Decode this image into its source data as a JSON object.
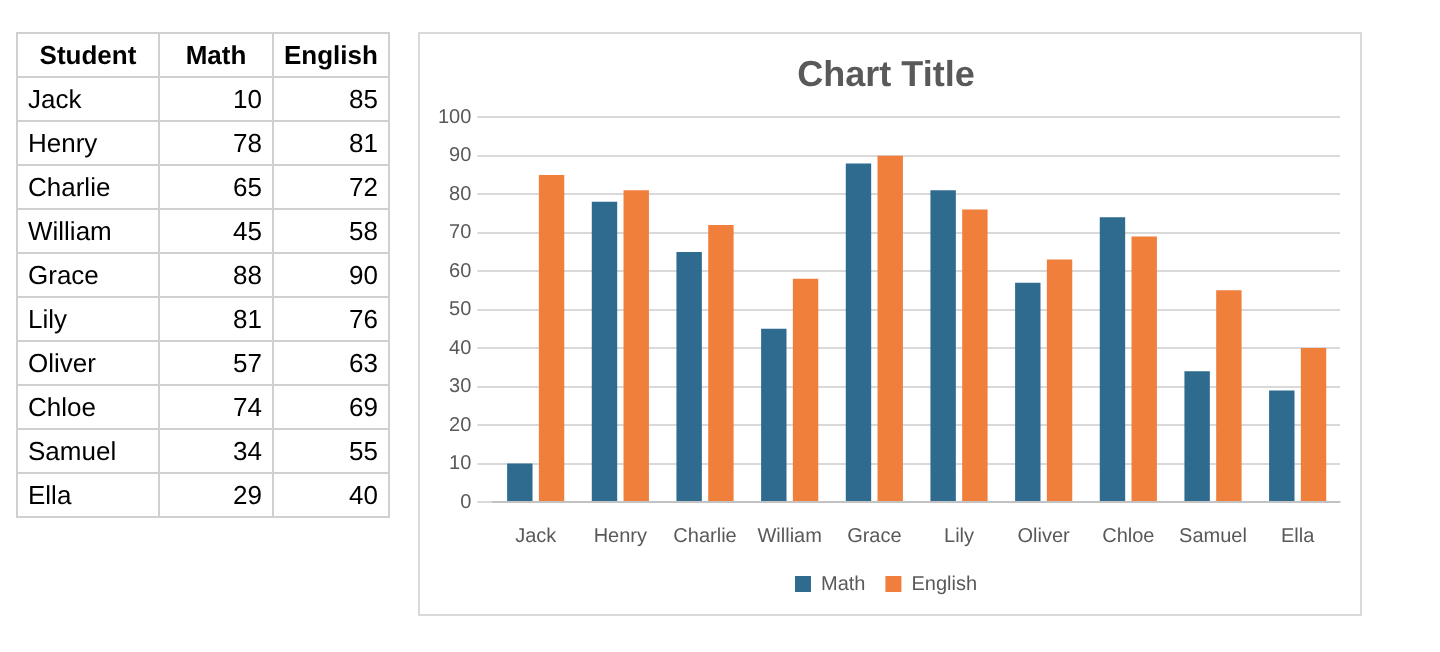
{
  "chart_data": [
    {
      "type": "other",
      "annotations": [
        "Student"
      ],
      "categories": [
        "Jack",
        "Henry",
        "Charlie",
        "William",
        "Grace",
        "Lily",
        "Oliver",
        "Chloe",
        "Samuel",
        "Ella"
      ],
      "series": [
        {
          "name": "Math",
          "values": [
            10,
            78,
            65,
            45,
            88,
            81,
            57,
            74,
            34,
            29
          ]
        },
        {
          "name": "English",
          "values": [
            85,
            81,
            72,
            58,
            90,
            76,
            63,
            69,
            55,
            40
          ]
        }
      ],
      "data_labels": true
    },
    {
      "type": "bar",
      "title": "Chart Title",
      "categories": [
        "Jack",
        "Henry",
        "Charlie",
        "William",
        "Grace",
        "Lily",
        "Oliver",
        "Chloe",
        "Samuel",
        "Ella"
      ],
      "series": [
        {
          "name": "Math",
          "color": "#2f6a8f",
          "values": [
            10,
            78,
            65,
            45,
            88,
            81,
            57,
            74,
            34,
            29
          ]
        },
        {
          "name": "English",
          "color": "#f07f3c",
          "values": [
            85,
            81,
            72,
            58,
            90,
            76,
            63,
            69,
            55,
            40
          ]
        }
      ],
      "ylim": [
        0,
        100
      ],
      "yticks": [
        0,
        10,
        20,
        30,
        40,
        50,
        60,
        70,
        80,
        90,
        100
      ],
      "grid": "y",
      "legend": "bottom"
    }
  ]
}
